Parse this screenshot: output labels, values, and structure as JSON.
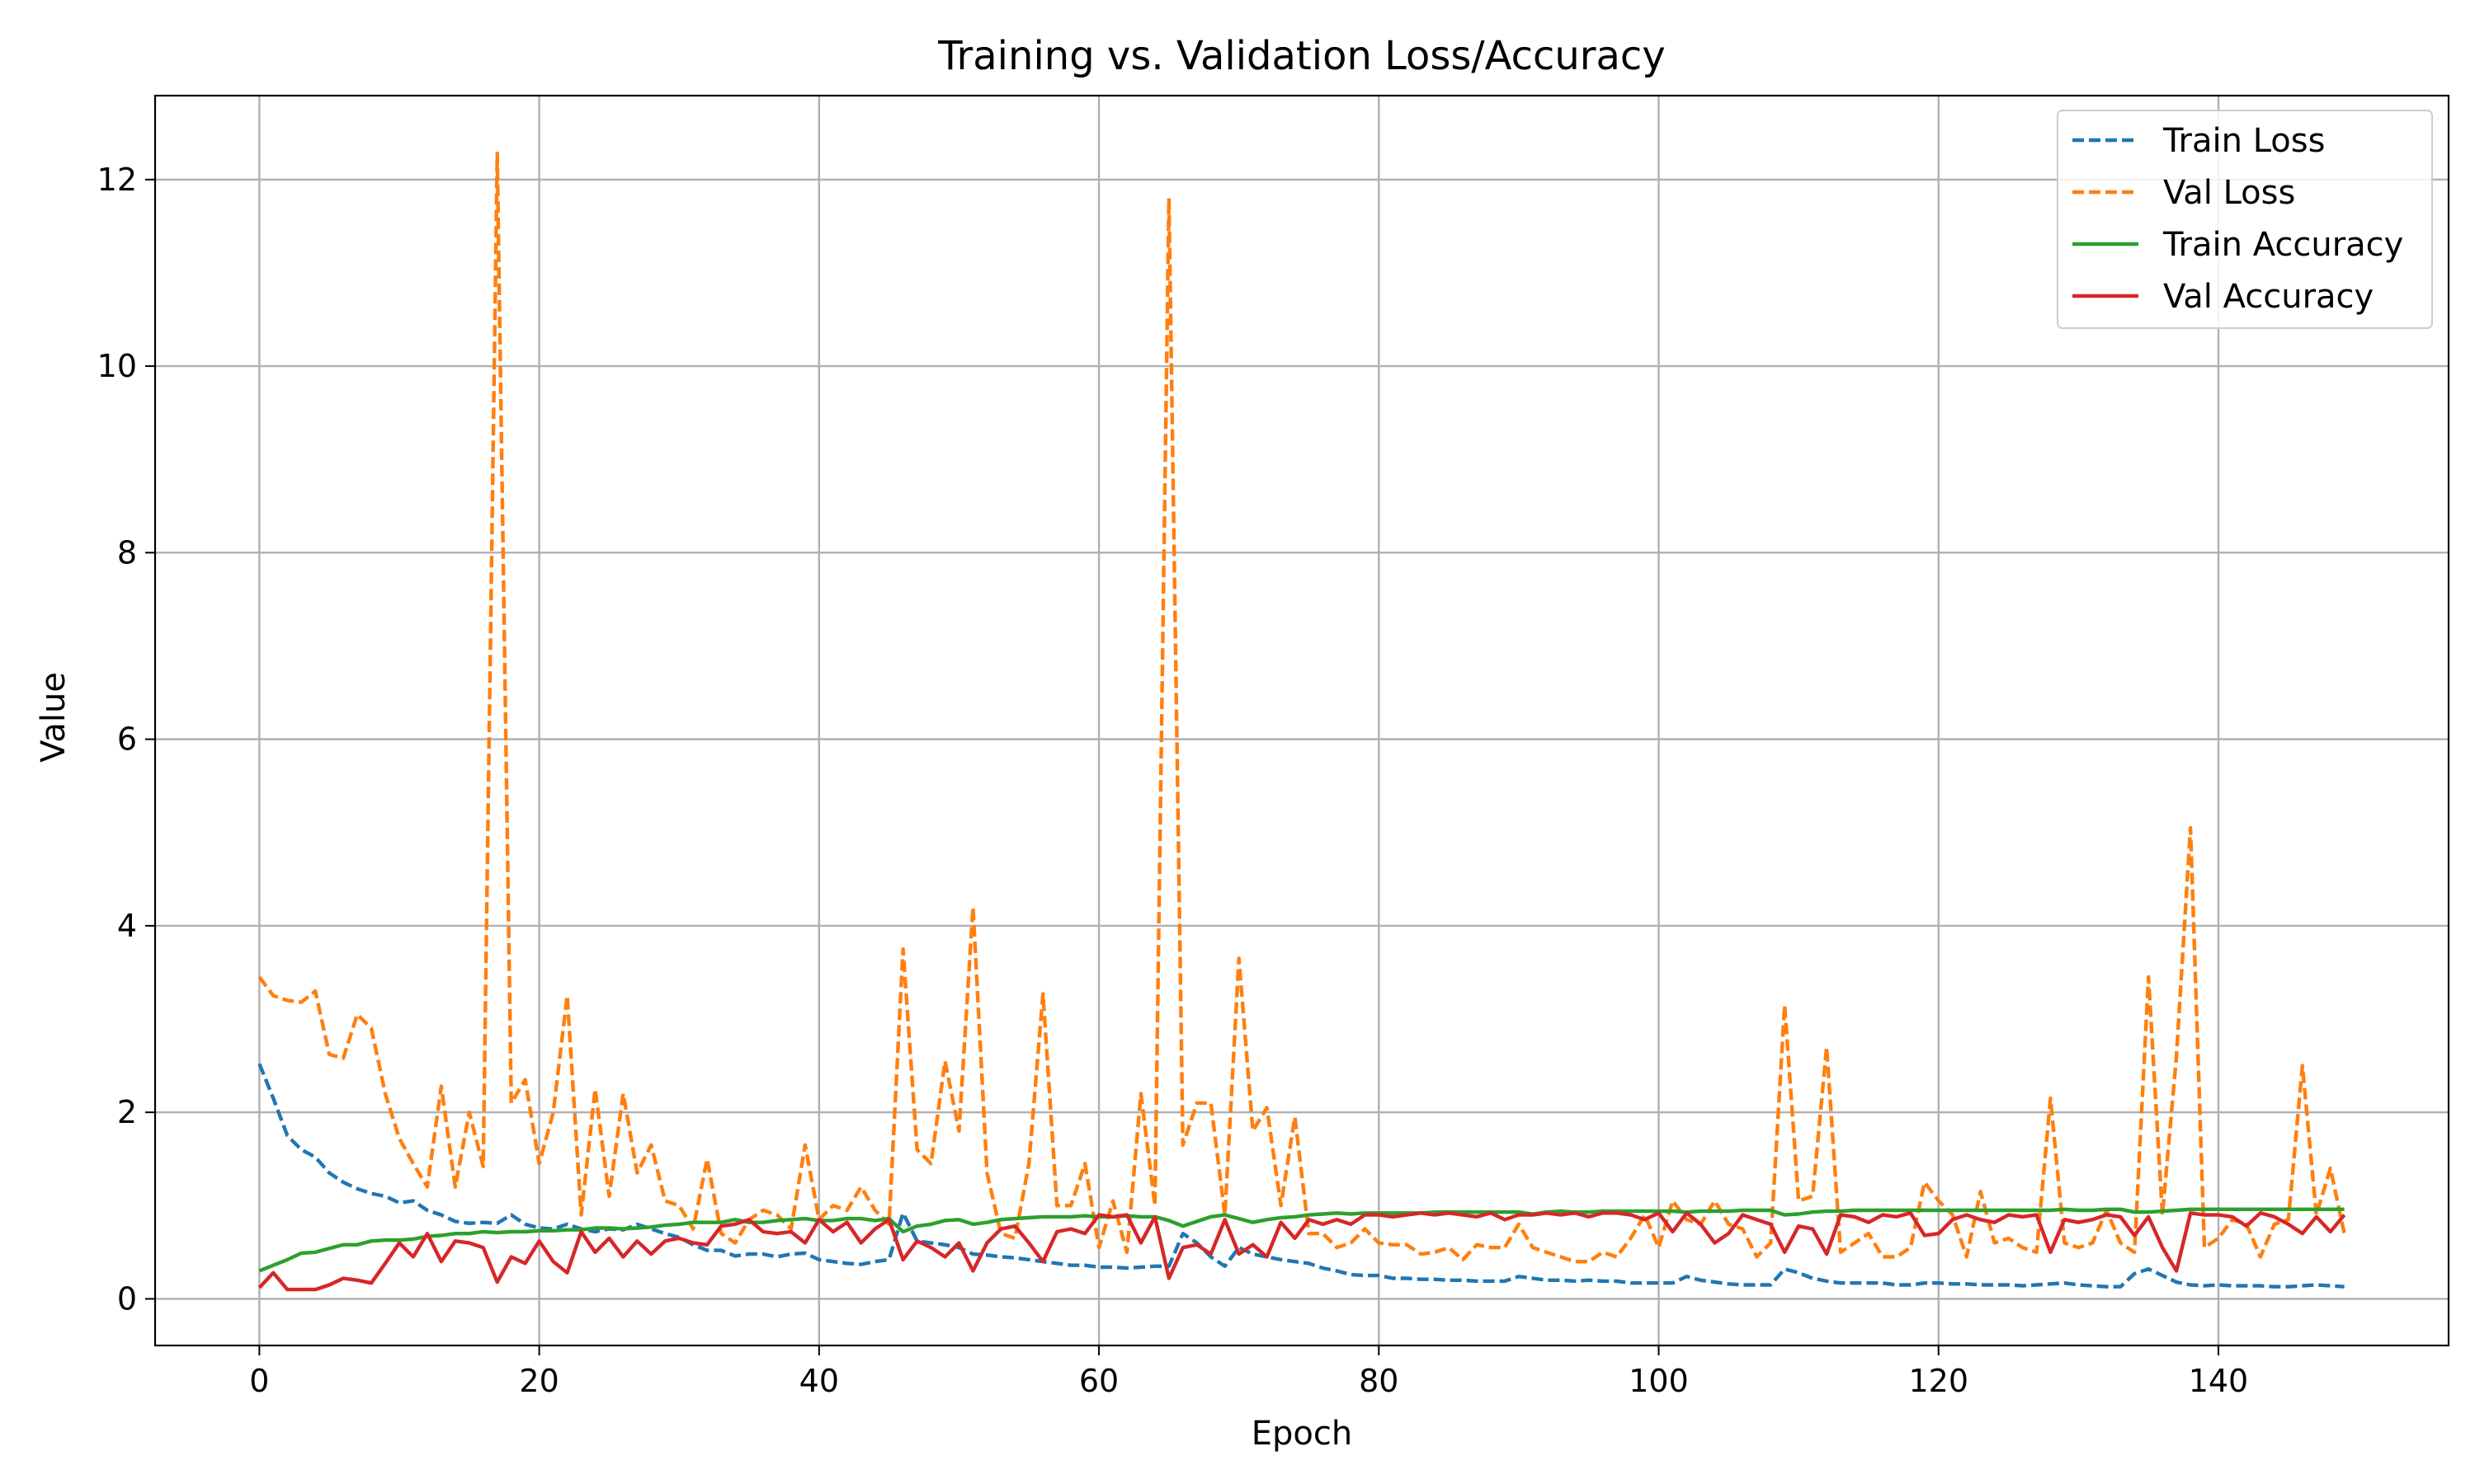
{
  "chart_data": {
    "type": "line",
    "title": "Training vs. Validation Loss/Accuracy",
    "xlabel": "Epoch",
    "ylabel": "Value",
    "xlim": [
      -7.45,
      156.45
    ],
    "ylim": [
      -0.5,
      12.9
    ],
    "xticks": [
      0,
      20,
      40,
      60,
      80,
      100,
      120,
      140
    ],
    "yticks": [
      0,
      2,
      4,
      6,
      8,
      10,
      12
    ],
    "grid": true,
    "legend_position": "top-right",
    "series": [
      {
        "name": "Train Loss",
        "color": "#1f77b4",
        "style": "dashed",
        "values": [
          2.52,
          2.15,
          1.75,
          1.6,
          1.52,
          1.35,
          1.25,
          1.18,
          1.13,
          1.1,
          1.03,
          1.05,
          0.95,
          0.9,
          0.83,
          0.81,
          0.82,
          0.81,
          0.9,
          0.8,
          0.76,
          0.75,
          0.8,
          0.75,
          0.72,
          0.75,
          0.74,
          0.8,
          0.75,
          0.7,
          0.66,
          0.58,
          0.52,
          0.52,
          0.46,
          0.48,
          0.48,
          0.45,
          0.48,
          0.49,
          0.42,
          0.4,
          0.38,
          0.37,
          0.4,
          0.42,
          0.92,
          0.62,
          0.6,
          0.58,
          0.55,
          0.48,
          0.47,
          0.45,
          0.44,
          0.42,
          0.4,
          0.38,
          0.36,
          0.36,
          0.34,
          0.34,
          0.33,
          0.34,
          0.35,
          0.35,
          0.7,
          0.6,
          0.45,
          0.35,
          0.55,
          0.48,
          0.45,
          0.42,
          0.4,
          0.38,
          0.33,
          0.3,
          0.26,
          0.25,
          0.25,
          0.22,
          0.22,
          0.21,
          0.21,
          0.2,
          0.2,
          0.19,
          0.19,
          0.19,
          0.24,
          0.22,
          0.2,
          0.2,
          0.19,
          0.2,
          0.19,
          0.19,
          0.17,
          0.17,
          0.17,
          0.17,
          0.24,
          0.2,
          0.18,
          0.16,
          0.15,
          0.15,
          0.15,
          0.32,
          0.28,
          0.22,
          0.19,
          0.17,
          0.17,
          0.17,
          0.17,
          0.15,
          0.15,
          0.17,
          0.17,
          0.16,
          0.16,
          0.15,
          0.15,
          0.15,
          0.14,
          0.15,
          0.16,
          0.17,
          0.15,
          0.14,
          0.13,
          0.13,
          0.27,
          0.32,
          0.25,
          0.18,
          0.15,
          0.14,
          0.15,
          0.14,
          0.14,
          0.14,
          0.13,
          0.13,
          0.14,
          0.15,
          0.14,
          0.13
        ]
      },
      {
        "name": "Val Loss",
        "color": "#ff7f0e",
        "style": "dashed",
        "values": [
          3.45,
          3.25,
          3.2,
          3.18,
          3.3,
          2.62,
          2.58,
          3.05,
          2.9,
          2.2,
          1.72,
          1.45,
          1.2,
          2.28,
          1.2,
          2.0,
          1.42,
          12.28,
          2.1,
          2.35,
          1.45,
          2.0,
          3.25,
          0.9,
          2.25,
          1.1,
          2.2,
          1.35,
          1.65,
          1.05,
          1.0,
          0.75,
          1.5,
          0.7,
          0.6,
          0.85,
          0.95,
          0.9,
          0.75,
          1.65,
          0.85,
          1.0,
          0.95,
          1.2,
          0.95,
          0.8,
          3.75,
          1.6,
          1.45,
          2.55,
          1.8,
          4.2,
          1.35,
          0.7,
          0.65,
          1.45,
          3.27,
          1.0,
          1.0,
          1.45,
          0.55,
          1.05,
          0.5,
          2.2,
          1.0,
          11.8,
          1.65,
          2.1,
          2.1,
          0.9,
          3.65,
          1.8,
          2.05,
          1.0,
          1.95,
          0.7,
          0.7,
          0.55,
          0.6,
          0.75,
          0.6,
          0.58,
          0.58,
          0.48,
          0.5,
          0.55,
          0.42,
          0.58,
          0.55,
          0.55,
          0.8,
          0.55,
          0.5,
          0.45,
          0.4,
          0.4,
          0.5,
          0.45,
          0.65,
          0.9,
          0.55,
          1.05,
          0.85,
          0.8,
          1.05,
          0.8,
          0.75,
          0.45,
          0.6,
          3.15,
          1.05,
          1.1,
          2.7,
          0.5,
          0.6,
          0.7,
          0.45,
          0.45,
          0.55,
          1.25,
          1.05,
          0.9,
          0.45,
          1.15,
          0.6,
          0.65,
          0.55,
          0.5,
          2.15,
          0.6,
          0.55,
          0.6,
          0.95,
          0.6,
          0.5,
          3.45,
          0.9,
          2.6,
          5.05,
          0.55,
          0.65,
          0.85,
          0.8,
          0.45,
          0.8,
          0.85,
          2.5,
          0.9,
          1.4,
          0.7
        ]
      },
      {
        "name": "Train Accuracy",
        "color": "#2ca02c",
        "style": "solid",
        "values": [
          0.3,
          0.36,
          0.42,
          0.49,
          0.5,
          0.54,
          0.58,
          0.58,
          0.62,
          0.63,
          0.63,
          0.64,
          0.67,
          0.68,
          0.7,
          0.7,
          0.72,
          0.71,
          0.72,
          0.72,
          0.73,
          0.73,
          0.74,
          0.74,
          0.76,
          0.76,
          0.75,
          0.76,
          0.77,
          0.79,
          0.8,
          0.82,
          0.82,
          0.82,
          0.85,
          0.82,
          0.82,
          0.84,
          0.85,
          0.86,
          0.84,
          0.84,
          0.86,
          0.86,
          0.84,
          0.86,
          0.72,
          0.78,
          0.8,
          0.84,
          0.85,
          0.8,
          0.82,
          0.85,
          0.86,
          0.87,
          0.88,
          0.88,
          0.88,
          0.89,
          0.88,
          0.88,
          0.89,
          0.88,
          0.88,
          0.84,
          0.78,
          0.83,
          0.88,
          0.9,
          0.86,
          0.82,
          0.85,
          0.87,
          0.88,
          0.9,
          0.91,
          0.92,
          0.91,
          0.92,
          0.92,
          0.92,
          0.92,
          0.92,
          0.93,
          0.93,
          0.93,
          0.93,
          0.93,
          0.93,
          0.93,
          0.91,
          0.93,
          0.94,
          0.93,
          0.93,
          0.94,
          0.94,
          0.94,
          0.94,
          0.94,
          0.94,
          0.93,
          0.94,
          0.94,
          0.94,
          0.95,
          0.95,
          0.95,
          0.9,
          0.91,
          0.93,
          0.94,
          0.94,
          0.95,
          0.95,
          0.95,
          0.95,
          0.95,
          0.95,
          0.95,
          0.95,
          0.95,
          0.95,
          0.95,
          0.95,
          0.95,
          0.95,
          0.95,
          0.96,
          0.95,
          0.95,
          0.96,
          0.96,
          0.93,
          0.93,
          0.94,
          0.95,
          0.96,
          0.96,
          0.96,
          0.96,
          0.96,
          0.96,
          0.96,
          0.96,
          0.96,
          0.96,
          0.96,
          0.96
        ]
      },
      {
        "name": "Val Accuracy",
        "color": "#d62728",
        "style": "solid",
        "values": [
          0.12,
          0.28,
          0.1,
          0.1,
          0.1,
          0.15,
          0.22,
          0.2,
          0.17,
          0.38,
          0.6,
          0.45,
          0.7,
          0.4,
          0.62,
          0.6,
          0.55,
          0.18,
          0.45,
          0.38,
          0.62,
          0.4,
          0.28,
          0.72,
          0.5,
          0.65,
          0.45,
          0.62,
          0.48,
          0.62,
          0.65,
          0.6,
          0.58,
          0.78,
          0.8,
          0.85,
          0.72,
          0.7,
          0.72,
          0.6,
          0.85,
          0.72,
          0.82,
          0.6,
          0.75,
          0.85,
          0.42,
          0.62,
          0.55,
          0.45,
          0.6,
          0.3,
          0.6,
          0.75,
          0.78,
          0.6,
          0.4,
          0.72,
          0.75,
          0.7,
          0.9,
          0.88,
          0.9,
          0.6,
          0.88,
          0.22,
          0.55,
          0.58,
          0.48,
          0.85,
          0.48,
          0.58,
          0.45,
          0.82,
          0.65,
          0.85,
          0.8,
          0.85,
          0.8,
          0.9,
          0.9,
          0.88,
          0.9,
          0.92,
          0.9,
          0.92,
          0.9,
          0.88,
          0.92,
          0.85,
          0.9,
          0.9,
          0.92,
          0.9,
          0.92,
          0.88,
          0.92,
          0.92,
          0.9,
          0.85,
          0.92,
          0.72,
          0.92,
          0.8,
          0.6,
          0.7,
          0.9,
          0.85,
          0.8,
          0.5,
          0.78,
          0.75,
          0.48,
          0.9,
          0.88,
          0.82,
          0.9,
          0.88,
          0.92,
          0.68,
          0.7,
          0.85,
          0.9,
          0.85,
          0.82,
          0.9,
          0.88,
          0.9,
          0.5,
          0.85,
          0.82,
          0.85,
          0.9,
          0.88,
          0.68,
          0.88,
          0.55,
          0.3,
          0.92,
          0.9,
          0.9,
          0.88,
          0.78,
          0.92,
          0.88,
          0.8,
          0.7,
          0.88,
          0.72,
          0.9
        ]
      }
    ]
  }
}
